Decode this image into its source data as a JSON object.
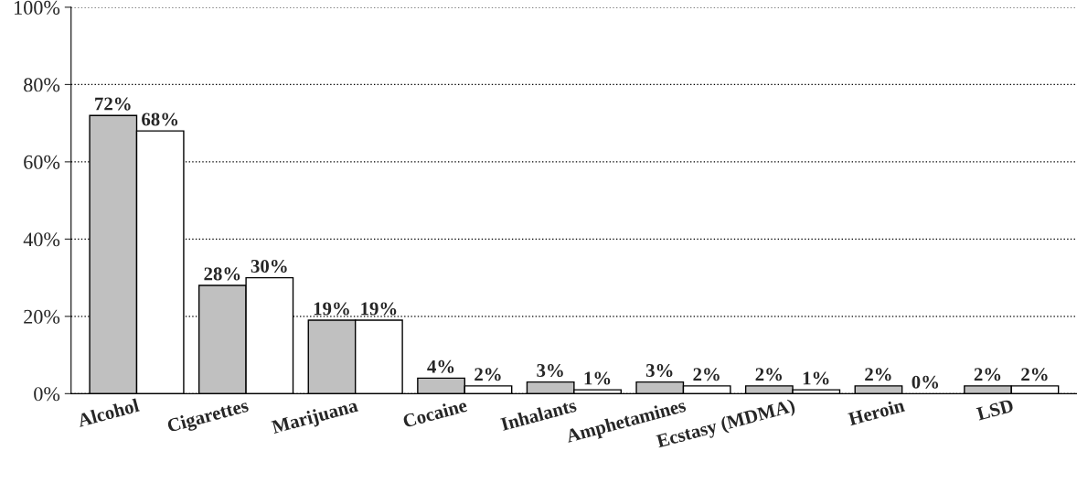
{
  "chart_data": {
    "type": "bar",
    "categories": [
      "Alcohol",
      "Cigarettes",
      "Marijuana",
      "Cocaine",
      "Inhalants",
      "Amphetamines",
      "Ecstasy (MDMA)",
      "Heroin",
      "LSD"
    ],
    "series": [
      {
        "color": "#c0c0c0",
        "values": [
          72,
          28,
          19,
          4,
          3,
          3,
          2,
          2,
          2
        ],
        "value_labels": [
          "72%",
          "28%",
          "19%",
          "4%",
          "3%",
          "3%",
          "2%",
          "2%",
          "2%"
        ]
      },
      {
        "color": "#ffffff",
        "values": [
          68,
          30,
          19,
          2,
          1,
          2,
          1,
          0,
          2
        ],
        "value_labels": [
          "68%",
          "30%",
          "19%",
          "2%",
          "1%",
          "2%",
          "1%",
          "0%",
          "2%"
        ]
      }
    ],
    "ylim": [
      0,
      100
    ],
    "yticks": [
      {
        "value": 0,
        "label": "0%"
      },
      {
        "value": 20,
        "label": "20%"
      },
      {
        "value": 40,
        "label": "40%"
      },
      {
        "value": 60,
        "label": "60%"
      },
      {
        "value": 80,
        "label": "80%"
      },
      {
        "value": 100,
        "label": "100%"
      }
    ],
    "grid": "y",
    "legend": false
  }
}
